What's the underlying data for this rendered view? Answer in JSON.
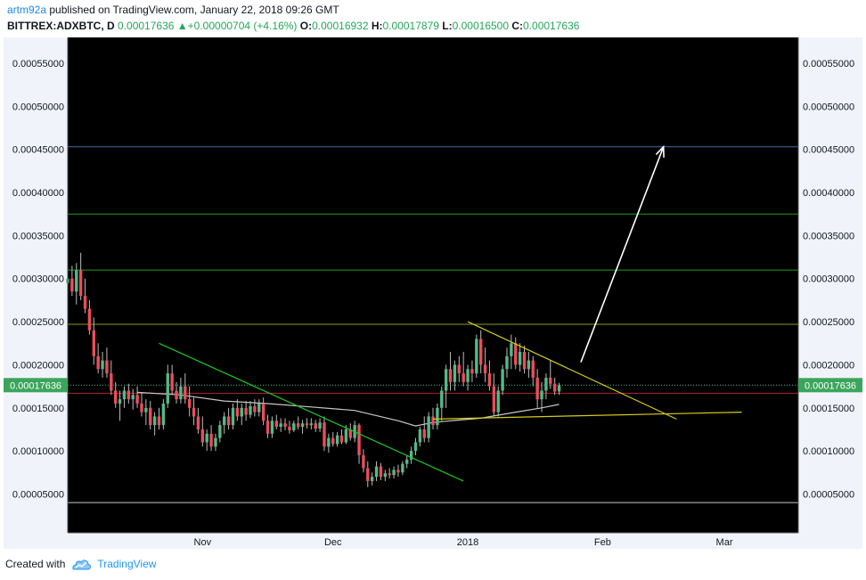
{
  "header": {
    "author": "artm92a",
    "published": "published on TradingView.com, January 22, 2018 09:26 GMT",
    "symbol": "BITTREX:ADXBTC, D",
    "last": "0.00017636",
    "change_arrow": "▲",
    "change": "+0.00000704 (+4.16%)",
    "o_label": "O:",
    "o_value": "0.00016932",
    "h_label": "H:",
    "h_value": "0.00017879",
    "l_label": "L:",
    "l_value": "0.00016500",
    "c_label": "C:",
    "c_value": "0.00017636"
  },
  "footer": {
    "created_with": "Created with",
    "brand": "TradingView",
    "logo_icon": "tradingview-cloud-icon"
  },
  "colors": {
    "background": "#000000",
    "up": "#53b987",
    "down": "#eb4d5c",
    "ma": "#c8c8c8",
    "trend_green": "#22c422",
    "level_green": "#1f9e1f",
    "level_olive": "#8a9a1a",
    "level_blue": "#3e6ea0",
    "level_red": "#b02a2a",
    "triangle": "#d8cc1a",
    "arrow": "#ffffff",
    "price_badge": "#3ba55c"
  },
  "chart_data": {
    "type": "candlestick",
    "symbol": "BITTREX:ADXBTC",
    "interval": "D",
    "y_ticks": [
      "0.00005000",
      "0.00010000",
      "0.00015000",
      "0.00020000",
      "0.00025000",
      "0.00030000",
      "0.00035000",
      "0.00040000",
      "0.00045000",
      "0.00050000",
      "0.00055000"
    ],
    "x_ticks": [
      {
        "label": "Nov",
        "date": "2017-11-01"
      },
      {
        "label": "Dec",
        "date": "2017-12-01"
      },
      {
        "label": "2018",
        "date": "2018-01-01"
      },
      {
        "label": "Feb",
        "date": "2018-02-01"
      },
      {
        "label": "Mar",
        "date": "2018-03-01"
      }
    ],
    "x_range": [
      "2017-10-01",
      "2018-03-18"
    ],
    "y_range": [
      5e-06,
      0.00058
    ],
    "last_price_label": "0.00017636",
    "last_price": 0.00017636,
    "horizontal_levels": [
      {
        "price": 0.000453,
        "role": "level_blue"
      },
      {
        "price": 0.000375,
        "role": "level_green"
      },
      {
        "price": 0.00031,
        "role": "level_green"
      },
      {
        "price": 0.000247,
        "role": "level_olive"
      },
      {
        "price": 0.000167,
        "role": "level_red"
      },
      {
        "price": 4e-05,
        "role": "ma"
      }
    ],
    "trendlines": [
      {
        "from": [
          "2017-10-22",
          0.000225
        ],
        "to": [
          "2017-12-31",
          6.5e-05
        ],
        "role": "trend_green"
      },
      {
        "from": [
          "2018-01-01",
          0.00025
        ],
        "to": [
          "2018-02-18",
          0.000137
        ],
        "role": "triangle"
      },
      {
        "from": [
          "2017-12-24",
          0.000137
        ],
        "to": [
          "2018-03-05",
          0.000145
        ],
        "role": "triangle"
      }
    ],
    "arrow": {
      "from": [
        "2018-01-27",
        0.000203
      ],
      "to": [
        "2018-02-15",
        0.000453
      ]
    },
    "moving_average": [
      [
        "2017-10-17",
        0.000168
      ],
      [
        "2017-10-27",
        0.000165
      ],
      [
        "2017-11-06",
        0.000158
      ],
      [
        "2017-11-16",
        0.000155
      ],
      [
        "2017-11-26",
        0.000151
      ],
      [
        "2017-12-06",
        0.000147
      ],
      [
        "2017-12-16",
        0.000135
      ],
      [
        "2017-12-20",
        0.000129
      ],
      [
        "2017-12-24",
        0.000133
      ],
      [
        "2017-12-28",
        0.000135
      ],
      [
        "2018-01-04",
        0.000138
      ],
      [
        "2018-01-12",
        0.000145
      ],
      [
        "2018-01-18",
        0.00015
      ],
      [
        "2018-01-22",
        0.000154
      ]
    ],
    "candles": [
      [
        "2017-10-01",
        0.000295,
        0.00031,
        0.00026,
        0.0003
      ],
      [
        "2017-10-02",
        0.0003,
        0.000315,
        0.00028,
        0.000285
      ],
      [
        "2017-10-03",
        0.000285,
        0.000318,
        0.00027,
        0.00031
      ],
      [
        "2017-10-04",
        0.00031,
        0.00033,
        0.000275,
        0.00028
      ],
      [
        "2017-10-05",
        0.00028,
        0.0003,
        0.00026,
        0.000265
      ],
      [
        "2017-10-06",
        0.000265,
        0.000275,
        0.000235,
        0.00024
      ],
      [
        "2017-10-07",
        0.00024,
        0.000255,
        0.0002,
        0.00021
      ],
      [
        "2017-10-08",
        0.00021,
        0.000225,
        0.00019,
        0.000195
      ],
      [
        "2017-10-09",
        0.000195,
        0.000215,
        0.000185,
        0.000205
      ],
      [
        "2017-10-10",
        0.000205,
        0.00022,
        0.000185,
        0.00019
      ],
      [
        "2017-10-11",
        0.00019,
        0.000205,
        0.000165,
        0.00017
      ],
      [
        "2017-10-12",
        0.00017,
        0.00018,
        0.00015,
        0.000155
      ],
      [
        "2017-10-13",
        0.000155,
        0.00017,
        0.000135,
        0.00016
      ],
      [
        "2017-10-14",
        0.00016,
        0.000175,
        0.00015,
        0.00017
      ],
      [
        "2017-10-15",
        0.00017,
        0.000178,
        0.000155,
        0.00016
      ],
      [
        "2017-10-16",
        0.00016,
        0.000172,
        0.000148,
        0.000165
      ],
      [
        "2017-10-17",
        0.000165,
        0.000175,
        0.00015,
        0.000155
      ],
      [
        "2017-10-18",
        0.000155,
        0.000168,
        0.00014,
        0.000145
      ],
      [
        "2017-10-19",
        0.000145,
        0.00016,
        0.00013,
        0.00015
      ],
      [
        "2017-10-20",
        0.00015,
        0.000158,
        0.000125,
        0.00013
      ],
      [
        "2017-10-21",
        0.00013,
        0.000145,
        0.000118,
        0.00014
      ],
      [
        "2017-10-22",
        0.00014,
        0.00015,
        0.000125,
        0.00013
      ],
      [
        "2017-10-23",
        0.00013,
        0.00016,
        0.000125,
        0.000155
      ],
      [
        "2017-10-24",
        0.000155,
        0.0002,
        0.00015,
        0.00019
      ],
      [
        "2017-10-25",
        0.00019,
        0.0002,
        0.000165,
        0.00017
      ],
      [
        "2017-10-26",
        0.00017,
        0.00018,
        0.000155,
        0.00016
      ],
      [
        "2017-10-27",
        0.00016,
        0.000185,
        0.000155,
        0.000175
      ],
      [
        "2017-10-28",
        0.000175,
        0.00019,
        0.000155,
        0.00016
      ],
      [
        "2017-10-29",
        0.00016,
        0.000175,
        0.00014,
        0.00015
      ],
      [
        "2017-10-30",
        0.00015,
        0.000162,
        0.00013,
        0.00014
      ],
      [
        "2017-10-31",
        0.00014,
        0.00015,
        0.00012,
        0.000125
      ],
      [
        "2017-11-01",
        0.000125,
        0.00014,
        0.000105,
        0.00011
      ],
      [
        "2017-11-02",
        0.00011,
        0.000125,
        0.0001,
        0.00012
      ],
      [
        "2017-11-03",
        0.00012,
        0.00013,
        0.0001,
        0.000105
      ],
      [
        "2017-11-04",
        0.000105,
        0.00012,
        0.0001,
        0.000115
      ],
      [
        "2017-11-05",
        0.000115,
        0.000135,
        0.00011,
        0.00013
      ],
      [
        "2017-11-06",
        0.00013,
        0.000145,
        0.00012,
        0.00014
      ],
      [
        "2017-11-07",
        0.00014,
        0.00015,
        0.000125,
        0.00013
      ],
      [
        "2017-11-08",
        0.00013,
        0.000155,
        0.000125,
        0.00015
      ],
      [
        "2017-11-09",
        0.00015,
        0.00016,
        0.000135,
        0.00014
      ],
      [
        "2017-11-10",
        0.00014,
        0.000155,
        0.00013,
        0.00015
      ],
      [
        "2017-11-11",
        0.00015,
        0.000158,
        0.000135,
        0.000142
      ],
      [
        "2017-11-12",
        0.000142,
        0.000158,
        0.000138,
        0.000152
      ],
      [
        "2017-11-13",
        0.000152,
        0.00016,
        0.00014,
        0.000145
      ],
      [
        "2017-11-14",
        0.000145,
        0.00016,
        0.00014,
        0.000155
      ],
      [
        "2017-11-15",
        0.000155,
        0.000162,
        0.00013,
        0.000135
      ],
      [
        "2017-11-16",
        0.000135,
        0.000142,
        0.000115,
        0.00012
      ],
      [
        "2017-11-17",
        0.00012,
        0.00014,
        0.000115,
        0.000135
      ],
      [
        "2017-11-18",
        0.000135,
        0.000142,
        0.000125,
        0.000128
      ],
      [
        "2017-11-19",
        0.000128,
        0.000138,
        0.000122,
        0.000132
      ],
      [
        "2017-11-20",
        0.000132,
        0.000138,
        0.000124,
        0.000128
      ],
      [
        "2017-11-21",
        0.000128,
        0.000135,
        0.00012,
        0.000124
      ],
      [
        "2017-11-22",
        0.000124,
        0.000135,
        0.000122,
        0.000132
      ],
      [
        "2017-11-23",
        0.000132,
        0.00014,
        0.000125,
        0.000128
      ],
      [
        "2017-11-24",
        0.000128,
        0.000136,
        0.00012,
        0.000132
      ],
      [
        "2017-11-25",
        0.000132,
        0.000138,
        0.000126,
        0.00013
      ],
      [
        "2017-11-26",
        0.00013,
        0.000138,
        0.000125,
        0.000132
      ],
      [
        "2017-11-27",
        0.000132,
        0.000136,
        0.000122,
        0.000126
      ],
      [
        "2017-11-28",
        0.000126,
        0.000138,
        0.000122,
        0.000133
      ],
      [
        "2017-11-29",
        0.000133,
        0.00014,
        0.0001,
        0.000105
      ],
      [
        "2017-11-30",
        0.000105,
        0.00012,
        9.8e-05,
        0.000115
      ],
      [
        "2017-12-01",
        0.000115,
        0.000122,
        0.000105,
        0.000108
      ],
      [
        "2017-12-02",
        0.000108,
        0.000122,
        0.000105,
        0.000118
      ],
      [
        "2017-12-03",
        0.000118,
        0.000125,
        0.000108,
        0.00011
      ],
      [
        "2017-12-04",
        0.00011,
        0.00013,
        0.000108,
        0.000125
      ],
      [
        "2017-12-05",
        0.000125,
        0.000132,
        0.000112,
        0.000115
      ],
      [
        "2017-12-06",
        0.000115,
        0.000135,
        0.00011,
        0.00013
      ],
      [
        "2017-12-07",
        0.00013,
        0.000132,
        8.5e-05,
        9.5e-05
      ],
      [
        "2017-12-08",
        9.5e-05,
        0.000102,
        7.5e-05,
        8e-05
      ],
      [
        "2017-12-09",
        8e-05,
        8.8e-05,
        5.8e-05,
        6.5e-05
      ],
      [
        "2017-12-10",
        6.5e-05,
        7.5e-05,
        6e-05,
        7e-05
      ],
      [
        "2017-12-11",
        7e-05,
        8.8e-05,
        6.5e-05,
        8.2e-05
      ],
      [
        "2017-12-12",
        8.2e-05,
        8.6e-05,
        6.6e-05,
        7e-05
      ],
      [
        "2017-12-13",
        7e-05,
        7.8e-05,
        6.5e-05,
        7.4e-05
      ],
      [
        "2017-12-14",
        7.4e-05,
        8e-05,
        6.8e-05,
        7.2e-05
      ],
      [
        "2017-12-15",
        7.2e-05,
        8.2e-05,
        6.8e-05,
        7.8e-05
      ],
      [
        "2017-12-16",
        7.8e-05,
        8.4e-05,
        7e-05,
        7.5e-05
      ],
      [
        "2017-12-17",
        7.5e-05,
        8.8e-05,
        7.2e-05,
        8.5e-05
      ],
      [
        "2017-12-18",
        8.5e-05,
        9.5e-05,
        8e-05,
        9e-05
      ],
      [
        "2017-12-19",
        9e-05,
        0.000105,
        8.5e-05,
        0.0001
      ],
      [
        "2017-12-20",
        0.0001,
        0.000115,
        9.5e-05,
        0.00011
      ],
      [
        "2017-12-21",
        0.00011,
        0.000128,
        0.000105,
        0.000125
      ],
      [
        "2017-12-22",
        0.000125,
        0.00014,
        0.00011,
        0.000115
      ],
      [
        "2017-12-23",
        0.000115,
        0.000145,
        0.00011,
        0.00014
      ],
      [
        "2017-12-24",
        0.00014,
        0.00015,
        0.000125,
        0.00013
      ],
      [
        "2017-12-25",
        0.00013,
        0.000155,
        0.000125,
        0.00015
      ],
      [
        "2017-12-26",
        0.00015,
        0.000175,
        0.000135,
        0.00017
      ],
      [
        "2017-12-27",
        0.00017,
        0.0002,
        0.00015,
        0.000195
      ],
      [
        "2017-12-28",
        0.000195,
        0.000215,
        0.00017,
        0.00018
      ],
      [
        "2017-12-29",
        0.00018,
        0.000205,
        0.00017,
        0.0002
      ],
      [
        "2017-12-30",
        0.0002,
        0.00021,
        0.00018,
        0.00019
      ],
      [
        "2017-12-31",
        0.00019,
        0.000215,
        0.000175,
        0.00018
      ],
      [
        "2018-01-01",
        0.00018,
        0.0002,
        0.00017,
        0.000195
      ],
      [
        "2018-01-02",
        0.000195,
        0.000205,
        0.00018,
        0.00019
      ],
      [
        "2018-01-03",
        0.00019,
        0.000235,
        0.000185,
        0.00023
      ],
      [
        "2018-01-04",
        0.00023,
        0.00024,
        0.00019,
        0.0002
      ],
      [
        "2018-01-05",
        0.0002,
        0.00022,
        0.00018,
        0.00019
      ],
      [
        "2018-01-06",
        0.00019,
        0.000205,
        0.00017,
        0.000175
      ],
      [
        "2018-01-07",
        0.000175,
        0.00019,
        0.00014,
        0.000145
      ],
      [
        "2018-01-08",
        0.000145,
        0.000175,
        0.00014,
        0.00017
      ],
      [
        "2018-01-09",
        0.00017,
        0.0002,
        0.000165,
        0.000195
      ],
      [
        "2018-01-10",
        0.000195,
        0.00022,
        0.000185,
        0.00021
      ],
      [
        "2018-01-11",
        0.00021,
        0.000235,
        0.000195,
        0.000225
      ],
      [
        "2018-01-12",
        0.000225,
        0.000232,
        0.000195,
        0.0002
      ],
      [
        "2018-01-13",
        0.0002,
        0.000225,
        0.000192,
        0.000215
      ],
      [
        "2018-01-14",
        0.000215,
        0.000222,
        0.00019,
        0.000195
      ],
      [
        "2018-01-15",
        0.000195,
        0.000215,
        0.000185,
        0.000205
      ],
      [
        "2018-01-16",
        0.000205,
        0.00021,
        0.000175,
        0.000185
      ],
      [
        "2018-01-17",
        0.000185,
        0.000195,
        0.00015,
        0.00016
      ],
      [
        "2018-01-18",
        0.00016,
        0.00018,
        0.000145,
        0.00017
      ],
      [
        "2018-01-19",
        0.00017,
        0.00019,
        0.00016,
        0.000185
      ],
      [
        "2018-01-20",
        0.000185,
        0.000205,
        0.000172,
        0.000178
      ],
      [
        "2018-01-21",
        0.000178,
        0.000185,
        0.000165,
        0.000169
      ],
      [
        "2018-01-22",
        0.000169,
        0.000179,
        0.000165,
        0.000176
      ]
    ]
  }
}
